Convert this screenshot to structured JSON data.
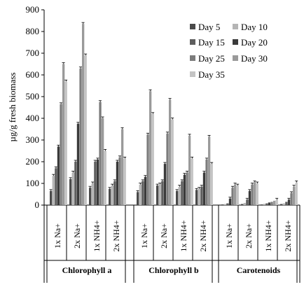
{
  "chart_data": {
    "type": "bar",
    "ylabel": "µg/g fresh biomass",
    "ylim": [
      0,
      900
    ],
    "yticks": [
      0,
      100,
      200,
      300,
      400,
      500,
      600,
      700,
      800,
      900
    ],
    "grid": false,
    "legend_position": "top-right",
    "groups": [
      "Chlorophyll a",
      "Chlorophyll b",
      "Carotenoids"
    ],
    "categories": [
      "1x Na+",
      "2x Na+",
      "1x NH4+",
      "2x NH4+"
    ],
    "series": [
      {
        "name": "Day 5",
        "color": "#4a4a4a"
      },
      {
        "name": "Day 10",
        "color": "#b5b5b5"
      },
      {
        "name": "Day 15",
        "color": "#5e5e5e"
      },
      {
        "name": "Day 20",
        "color": "#3a3a3a"
      },
      {
        "name": "Day 25",
        "color": "#7c7c7c"
      },
      {
        "name": "Day 30",
        "color": "#9a9a9a"
      },
      {
        "name": "Day 35",
        "color": "#c4c4c4"
      }
    ],
    "values": {
      "Chlorophyll a": {
        "1x Na+": [
          65,
          135,
          170,
          270,
          465,
          650,
          570
        ],
        "2x Na+": [
          120,
          150,
          200,
          375,
          630,
          835,
          690
        ],
        "1x NH4+": [
          80,
          100,
          200,
          210,
          475,
          400,
          250
        ],
        "2x NH4+": [
          75,
          90,
          110,
          200,
          220,
          350,
          215
        ]
      },
      "Chlorophyll b": {
        "1x Na+": [
          60,
          95,
          110,
          130,
          325,
          525,
          420
        ],
        "2x Na+": [
          90,
          95,
          110,
          190,
          330,
          485,
          395
        ],
        "1x NH4+": [
          65,
          85,
          110,
          140,
          150,
          320,
          215
        ],
        "2x NH4+": [
          70,
          75,
          85,
          150,
          210,
          315,
          190
        ]
      },
      "Carotenoids": {
        "1x Na+": [
          3,
          5,
          8,
          30,
          80,
          95,
          90
        ],
        "2x Na+": [
          5,
          10,
          25,
          65,
          95,
          105,
          100
        ],
        "1x NH4+": [
          3,
          6,
          8,
          12,
          15,
          20,
          25
        ],
        "2x NH4+": [
          5,
          8,
          15,
          25,
          55,
          85,
          105
        ]
      }
    }
  }
}
